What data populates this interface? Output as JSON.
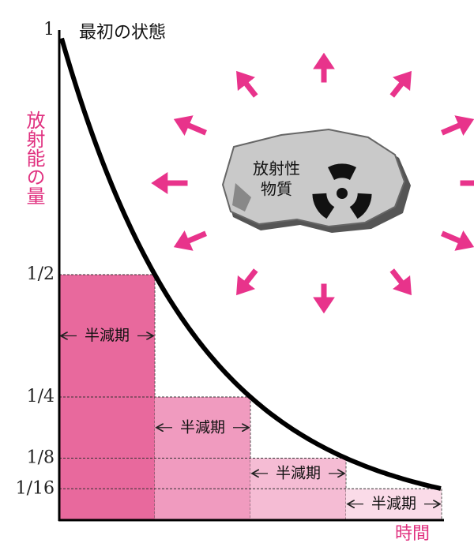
{
  "chart_data": {
    "type": "bar",
    "annotation": "最初の状態",
    "y_label": "放射能の量",
    "x_label": "時間",
    "illustration_label": [
      "放射性",
      "物質"
    ],
    "categories": [
      "半減期",
      "半減期",
      "半減期",
      "半減期"
    ],
    "values": [
      0.5,
      0.25,
      0.125,
      0.0625
    ],
    "colors": [
      "#e8699d",
      "#f09bbf",
      "#f5bcd4",
      "#fadbe8"
    ],
    "ylim": [
      0,
      1
    ],
    "yticks": [
      {
        "value": 1,
        "label": "1"
      },
      {
        "value": 0.5,
        "label": "1/2"
      },
      {
        "value": 0.25,
        "label": "1/4"
      },
      {
        "value": 0.125,
        "label": "1/8"
      },
      {
        "value": 0.0625,
        "label": "1/16"
      }
    ]
  }
}
